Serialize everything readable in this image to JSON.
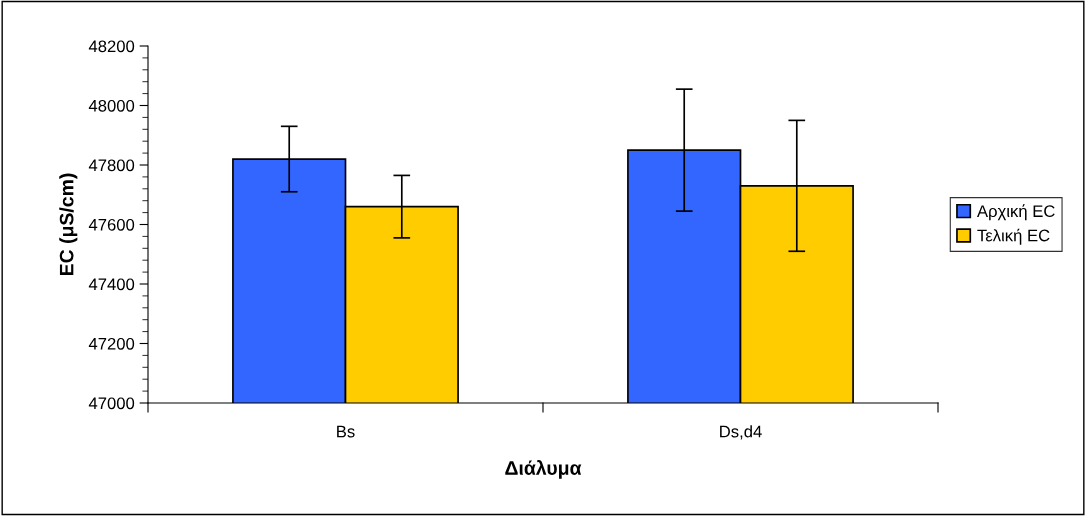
{
  "chart_data": {
    "type": "bar",
    "xlabel": "Διάλυμα",
    "ylabel": "EC (μS/cm)",
    "categories": [
      "Bs",
      "Ds,d4"
    ],
    "series": [
      {
        "name": "Αρχική EC",
        "color": "#3366ff",
        "values": [
          47820,
          47850
        ],
        "errors": [
          110,
          205
        ]
      },
      {
        "name": "Τελική EC",
        "color": "#ffcc00",
        "values": [
          47660,
          47730
        ],
        "errors": [
          105,
          220
        ]
      }
    ],
    "ylim": [
      47000,
      48200
    ],
    "yticks": [
      47000,
      47200,
      47400,
      47600,
      47800,
      48000,
      48200
    ],
    "grid": false,
    "legend": "right"
  }
}
